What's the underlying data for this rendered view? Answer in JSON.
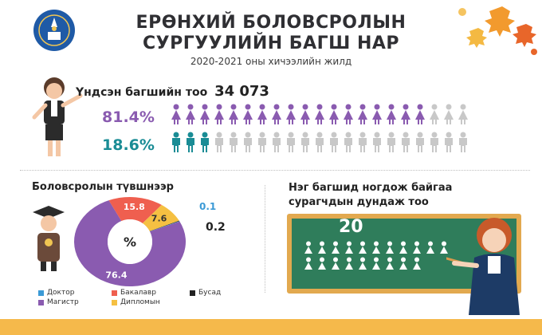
{
  "header": {
    "title_line1": "ЕРӨНХИЙ БОЛОВСРОЛЫН",
    "title_line2": "СУРГУУЛИЙН БАГШ НАР",
    "subtitle": "2020-2021 оны хичээлийн жилд"
  },
  "teachers": {
    "label": "Үндсэн багшийн тоо",
    "total": "34 073",
    "female_pct": "81.4%",
    "male_pct": "18.6%",
    "female_icons_colored": 18,
    "female_icons_total": 21,
    "male_icons_colored": 3,
    "male_icons_total": 21,
    "colors": {
      "female": "#8a5bb0",
      "male": "#1a8c95",
      "inactive": "#c8c8c8"
    }
  },
  "education": {
    "title": "Боловсролын түвшнээр",
    "center_label": "%",
    "segments": [
      {
        "name": "Доктор",
        "value": "0.1",
        "color": "#3b9ad6"
      },
      {
        "name": "Магистр",
        "value": "76.4",
        "color": "#8a5bb0"
      },
      {
        "name": "Бакалавр",
        "value": "15.8",
        "color": "#ef5f4f"
      },
      {
        "name": "Дипломын",
        "value": "7.6",
        "color": "#f5c042"
      },
      {
        "name": "Бусад",
        "value": "0.2",
        "color": "#222222"
      }
    ]
  },
  "ratio": {
    "title": "Нэг багшид ногдож байгаа сурагчдын дундаж тоо",
    "value": "20"
  }
}
